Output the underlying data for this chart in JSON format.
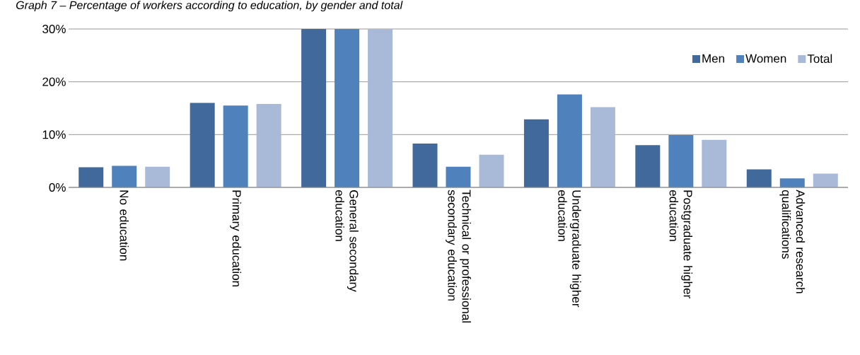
{
  "chart_data": {
    "type": "bar",
    "title": "Graph 7 – Percentage of workers according to education, by gender and total",
    "categories": [
      "No education",
      "Primary education",
      "General secondary education",
      "Technical or professional secondary education",
      "Undergraduate higher education",
      "Postgraduate higher education",
      "Advanced research qualifications"
    ],
    "series": [
      {
        "name": "Men",
        "color": "#41699b",
        "values": [
          3.8,
          16.0,
          30,
          8.3,
          12.9,
          8.0,
          3.4
        ]
      },
      {
        "name": "Women",
        "color": "#4f81bd",
        "values": [
          4.1,
          15.5,
          30,
          3.9,
          17.6,
          9.9,
          1.7
        ]
      },
      {
        "name": "Total",
        "color": "#a9b9d8",
        "values": [
          3.9,
          15.8,
          30,
          6.2,
          15.2,
          9.0,
          2.6
        ]
      }
    ],
    "ylim": [
      0,
      30
    ],
    "yticks": [
      {
        "value": 0,
        "label": "0%"
      },
      {
        "value": 10,
        "label": "10%"
      },
      {
        "value": 20,
        "label": "20%"
      },
      {
        "value": 30,
        "label": "30%"
      }
    ],
    "grid": "y",
    "legend": "top right"
  }
}
